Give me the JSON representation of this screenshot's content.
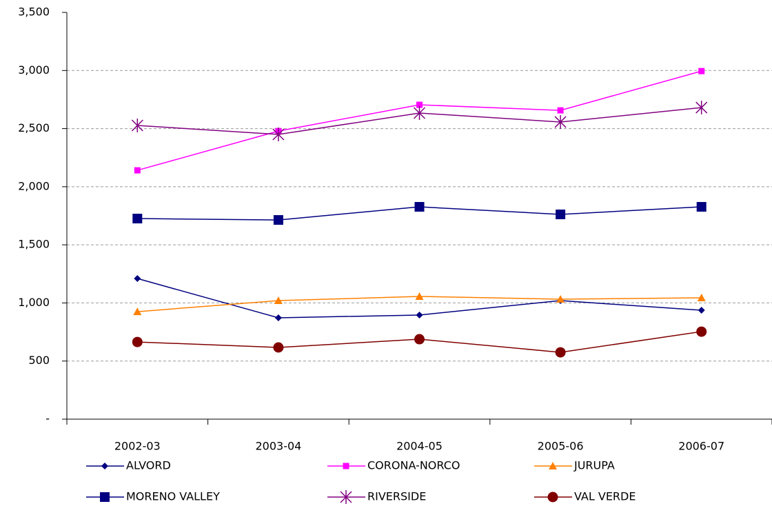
{
  "chart_data": {
    "type": "line",
    "categories": [
      "2002-03",
      "2003-04",
      "2004-05",
      "2005-06",
      "2006-07"
    ],
    "series": [
      {
        "name": "ALVORD",
        "color": "#000080",
        "marker": "diamond",
        "values": [
          1210,
          872,
          896,
          1020,
          937
        ]
      },
      {
        "name": "CORONA-NORCO",
        "color": "#ff00ff",
        "marker": "square",
        "values": [
          2141,
          2479,
          2705,
          2657,
          2995
        ]
      },
      {
        "name": "JURUPA",
        "color": "#ff8000",
        "marker": "triangle",
        "values": [
          925,
          1020,
          1056,
          1032,
          1044
        ]
      },
      {
        "name": "MORENO VALLEY",
        "color": "#000080",
        "marker": "bigsquare",
        "values": [
          1726,
          1714,
          1827,
          1762,
          1827
        ]
      },
      {
        "name": "RIVERSIDE",
        "color": "#800080",
        "marker": "star",
        "values": [
          2527,
          2450,
          2634,
          2557,
          2681
        ]
      },
      {
        "name": "VAL VERDE",
        "color": "#800000",
        "marker": "circle",
        "values": [
          664,
          617,
          688,
          575,
          753
        ]
      }
    ],
    "ylim": [
      0,
      3500
    ],
    "yticks": [
      {
        "value": 0,
        "label": "-"
      },
      500,
      {
        "value": 1000,
        "label": "1,000"
      },
      {
        "value": 1500,
        "label": "1,500"
      },
      {
        "value": 2000,
        "label": "2,000"
      },
      {
        "value": 2500,
        "label": "2,500"
      },
      {
        "value": 3000,
        "label": "3,000"
      },
      {
        "value": 3500,
        "label": "3,500"
      }
    ],
    "grid": true
  }
}
